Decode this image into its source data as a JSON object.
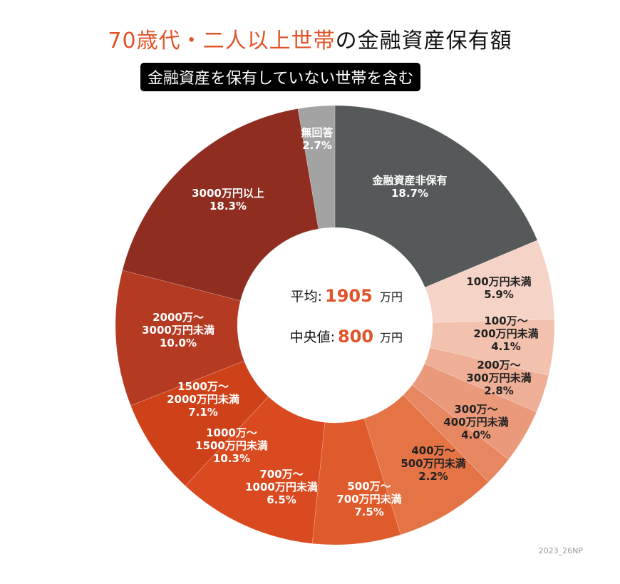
{
  "title": {
    "accent": "70歳代・二人以上世帯",
    "rest": "の金融資産保有額"
  },
  "subtitle": "金融資産を保有していない世帯を含む",
  "center": {
    "mean_label": "平均:",
    "mean_value": "1905",
    "mean_unit": "万円",
    "median_label": "中央値:",
    "median_value": "800",
    "median_unit": "万円"
  },
  "credit": "2023_26NP",
  "colors": {
    "accent": "#e0542a"
  },
  "chart_data": {
    "type": "pie",
    "donut": true,
    "start": "top, clockwise",
    "slices": [
      {
        "label": [
          "金融資産非保有"
        ],
        "value": 18.7,
        "pct": "18.7%",
        "color": "#555959",
        "text_color": "#ffffff"
      },
      {
        "label": [
          "100万円未満"
        ],
        "value": 5.9,
        "pct": "5.9%",
        "color": "#f5d4c7",
        "text_color": "#222222"
      },
      {
        "label": [
          "100万～",
          "200万円未満"
        ],
        "value": 4.1,
        "pct": "4.1%",
        "color": "#f2c2af",
        "text_color": "#222222"
      },
      {
        "label": [
          "200万～",
          "300万円未満"
        ],
        "value": 2.8,
        "pct": "2.8%",
        "color": "#eeaf96",
        "text_color": "#222222"
      },
      {
        "label": [
          "300万～",
          "400万円未満"
        ],
        "value": 4.0,
        "pct": "4.0%",
        "color": "#ea9a7b",
        "text_color": "#222222"
      },
      {
        "label": [
          "400万～",
          "500万円未満"
        ],
        "value": 2.2,
        "pct": "2.2%",
        "color": "#e78762",
        "text_color": "#222222"
      },
      {
        "label": [
          "500万～",
          "700万円未満"
        ],
        "value": 7.5,
        "pct": "7.5%",
        "color": "#e47345",
        "text_color": "#ffffff"
      },
      {
        "label": [
          "700万～",
          "1000万円未満"
        ],
        "value": 6.5,
        "pct": "6.5%",
        "color": "#e05b2b",
        "text_color": "#ffffff"
      },
      {
        "label": [
          "1000万～",
          "1500万円未満"
        ],
        "value": 10.3,
        "pct": "10.3%",
        "color": "#da4a20",
        "text_color": "#ffffff"
      },
      {
        "label": [
          "1500万～",
          "2000万円未満"
        ],
        "value": 7.1,
        "pct": "7.1%",
        "color": "#cf4118",
        "text_color": "#ffffff"
      },
      {
        "label": [
          "2000万～",
          "3000万円未満"
        ],
        "value": 10.0,
        "pct": "10.0%",
        "color": "#b53a22",
        "text_color": "#ffffff"
      },
      {
        "label": [
          "3000万円以上"
        ],
        "value": 18.3,
        "pct": "18.3%",
        "color": "#8f2d21",
        "text_color": "#ffffff"
      },
      {
        "label": [
          "無回答"
        ],
        "value": 2.7,
        "pct": "2.7%",
        "color": "#a3a3a3",
        "text_color": "#ffffff"
      }
    ]
  }
}
